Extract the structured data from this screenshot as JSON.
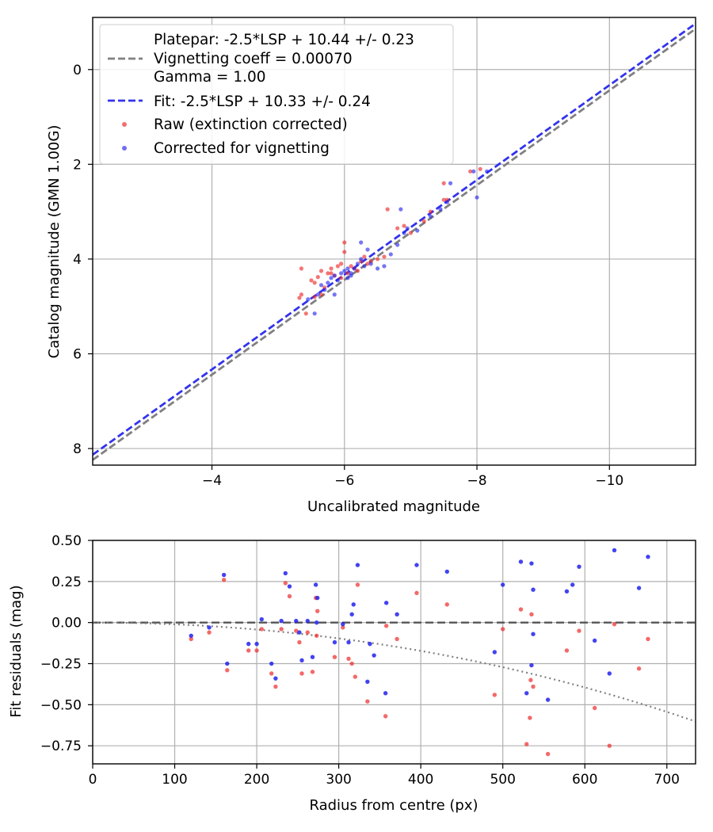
{
  "chart_data": [
    {
      "type": "scatter",
      "title": "",
      "xlabel": "Uncalibrated magnitude",
      "ylabel": "Catalog magnitude (GMN 1.00G)",
      "xlim": [
        -2.2,
        -11.3
      ],
      "ylim": [
        8.35,
        -1.1
      ],
      "xticks": [
        -4,
        -6,
        -8,
        -10
      ],
      "xtick_labels": [
        "−4",
        "−6",
        "−8",
        "−10"
      ],
      "yticks": [
        0,
        2,
        4,
        6,
        8
      ],
      "ytick_labels": [
        "0",
        "2",
        "4",
        "6",
        "8"
      ],
      "grid": true,
      "legend_position": "top-left",
      "legend": [
        {
          "label": "Platepar: -2.5*LSP + 10.44 +/- 0.23",
          "kind": "none"
        },
        {
          "label": "Vignetting coeff = 0.00070",
          "kind": "dashed-line",
          "color": "#808080"
        },
        {
          "label": "Gamma = 1.00",
          "kind": "none"
        },
        {
          "label": "Fit: -2.5*LSP + 10.33 +/- 0.24",
          "kind": "dashed-line",
          "color": "#3333ee"
        },
        {
          "label": "Raw (extinction corrected)",
          "kind": "marker",
          "color": "#ee2222"
        },
        {
          "label": "Corrected for vignetting",
          "kind": "marker",
          "color": "#2222ee"
        }
      ],
      "lines": [
        {
          "name": "Platepar",
          "offset": 10.44,
          "color": "#808080",
          "x_range": [
            -2.2,
            -11.3
          ]
        },
        {
          "name": "Fit",
          "offset": 10.33,
          "color": "#3333ee",
          "x_range": [
            -2.2,
            -11.3
          ]
        }
      ],
      "series": [
        {
          "name": "Raw (extinction corrected)",
          "color": "#ee2222",
          "points": [
            [
              -5.35,
              4.75
            ],
            [
              -5.32,
              4.82
            ],
            [
              -5.42,
              5.15
            ],
            [
              -5.5,
              4.45
            ],
            [
              -5.55,
              4.5
            ],
            [
              -5.6,
              4.38
            ],
            [
              -5.65,
              4.25
            ],
            [
              -5.7,
              4.6
            ],
            [
              -5.75,
              4.3
            ],
            [
              -5.8,
              4.2
            ],
            [
              -5.85,
              4.35
            ],
            [
              -5.9,
              4.15
            ],
            [
              -5.95,
              4.4
            ],
            [
              -6.0,
              3.85
            ],
            [
              -6.05,
              4.3
            ],
            [
              -6.1,
              4.15
            ],
            [
              -6.15,
              4.2
            ],
            [
              -6.2,
              4.25
            ],
            [
              -6.25,
              4.05
            ],
            [
              -6.3,
              3.95
            ],
            [
              -6.35,
              4.1
            ],
            [
              -6.4,
              4.05
            ],
            [
              -6.5,
              4.0
            ],
            [
              -6.6,
              3.95
            ],
            [
              -5.35,
              4.2
            ],
            [
              -5.55,
              4.8
            ],
            [
              -5.65,
              4.75
            ],
            [
              -5.8,
              4.3
            ],
            [
              -5.95,
              4.1
            ],
            [
              -6.0,
              3.65
            ],
            [
              -6.65,
              2.95
            ],
            [
              -6.8,
              3.35
            ],
            [
              -6.9,
              3.3
            ],
            [
              -7.0,
              3.45
            ],
            [
              -7.2,
              3.2
            ],
            [
              -7.3,
              3.0
            ],
            [
              -7.5,
              2.75
            ],
            [
              -7.55,
              2.75
            ],
            [
              -7.5,
              2.4
            ],
            [
              -7.9,
              2.15
            ],
            [
              -8.05,
              2.1
            ]
          ]
        },
        {
          "name": "Corrected for vignetting",
          "color": "#2222ee",
          "points": [
            [
              -5.45,
              4.85
            ],
            [
              -5.55,
              5.15
            ],
            [
              -5.6,
              4.75
            ],
            [
              -5.65,
              4.55
            ],
            [
              -5.7,
              4.65
            ],
            [
              -5.75,
              4.5
            ],
            [
              -5.8,
              4.4
            ],
            [
              -5.85,
              4.35
            ],
            [
              -5.9,
              4.45
            ],
            [
              -5.95,
              4.3
            ],
            [
              -6.0,
              4.25
            ],
            [
              -6.05,
              4.4
            ],
            [
              -6.1,
              4.3
            ],
            [
              -6.15,
              4.2
            ],
            [
              -6.2,
              4.1
            ],
            [
              -6.25,
              4.0
            ],
            [
              -6.3,
              4.15
            ],
            [
              -6.4,
              4.1
            ],
            [
              -6.5,
              4.2
            ],
            [
              -6.6,
              4.15
            ],
            [
              -6.7,
              3.9
            ],
            [
              -6.8,
              3.7
            ],
            [
              -6.9,
              3.45
            ],
            [
              -6.95,
              3.35
            ],
            [
              -7.1,
              3.4
            ],
            [
              -7.3,
              3.1
            ],
            [
              -7.45,
              2.95
            ],
            [
              -7.55,
              2.8
            ],
            [
              -7.6,
              2.4
            ],
            [
              -7.95,
              2.15
            ],
            [
              -8.0,
              2.7
            ],
            [
              -8.15,
              2.15
            ],
            [
              -6.25,
              3.65
            ],
            [
              -6.35,
              3.8
            ],
            [
              -6.85,
              2.95
            ],
            [
              -5.85,
              4.75
            ],
            [
              -6.1,
              4.35
            ],
            [
              -6.05,
              4.2
            ]
          ]
        }
      ]
    },
    {
      "type": "scatter",
      "title": "",
      "xlabel": "Radius from centre (px)",
      "ylabel": "Fit residuals (mag)",
      "xlim": [
        0,
        735
      ],
      "ylim": [
        -0.86,
        0.5
      ],
      "xticks": [
        0,
        100,
        200,
        300,
        400,
        500,
        600,
        700
      ],
      "xtick_labels": [
        "0",
        "100",
        "200",
        "300",
        "400",
        "500",
        "600",
        "700"
      ],
      "yticks": [
        0.5,
        0.25,
        0.0,
        -0.25,
        -0.5,
        -0.75
      ],
      "ytick_labels": [
        "0.50",
        "0.25",
        "0.00",
        "−0.25",
        "−0.50",
        "−0.75"
      ],
      "grid": true,
      "reference_line": {
        "y": 0.0,
        "style": "dashed",
        "color": "#555555"
      },
      "vignetting_curve": {
        "coeff": 0.0007,
        "style": "dotted",
        "color": "#808080"
      },
      "series": [
        {
          "name": "Raw (extinction corrected)",
          "color": "#ee2222",
          "points": [
            [
              120,
              -0.1
            ],
            [
              142,
              -0.06
            ],
            [
              160,
              0.26
            ],
            [
              164,
              -0.29
            ],
            [
              190,
              -0.17
            ],
            [
              200,
              -0.17
            ],
            [
              206,
              -0.04
            ],
            [
              218,
              -0.31
            ],
            [
              223,
              -0.39
            ],
            [
              230,
              -0.04
            ],
            [
              235,
              0.24
            ],
            [
              240,
              0.16
            ],
            [
              248,
              -0.05
            ],
            [
              252,
              -0.12
            ],
            [
              255,
              -0.31
            ],
            [
              262,
              -0.06
            ],
            [
              268,
              -0.3
            ],
            [
              272,
              0.15
            ],
            [
              273,
              -0.08
            ],
            [
              274,
              0.07
            ],
            [
              295,
              -0.21
            ],
            [
              305,
              -0.03
            ],
            [
              312,
              -0.22
            ],
            [
              316,
              -0.25
            ],
            [
              320,
              -0.33
            ],
            [
              323,
              0.23
            ],
            [
              335,
              -0.48
            ],
            [
              357,
              -0.57
            ],
            [
              358,
              -0.02
            ],
            [
              371,
              -0.1
            ],
            [
              395,
              0.18
            ],
            [
              432,
              0.11
            ],
            [
              490,
              -0.44
            ],
            [
              500,
              -0.04
            ],
            [
              522,
              0.08
            ],
            [
              529,
              -0.74
            ],
            [
              533,
              -0.58
            ],
            [
              534,
              -0.35
            ],
            [
              535,
              0.05
            ],
            [
              537,
              -0.39
            ],
            [
              555,
              -0.8
            ],
            [
              578,
              -0.17
            ],
            [
              593,
              -0.05
            ],
            [
              612,
              -0.52
            ],
            [
              630,
              -0.75
            ],
            [
              636,
              -0.01
            ],
            [
              666,
              -0.28
            ],
            [
              677,
              -0.1
            ]
          ]
        },
        {
          "name": "Corrected for vignetting",
          "color": "#2222ee",
          "points": [
            [
              120,
              -0.08
            ],
            [
              142,
              -0.03
            ],
            [
              160,
              0.29
            ],
            [
              164,
              -0.25
            ],
            [
              190,
              -0.13
            ],
            [
              200,
              -0.13
            ],
            [
              206,
              0.02
            ],
            [
              218,
              -0.25
            ],
            [
              223,
              -0.34
            ],
            [
              230,
              0.01
            ],
            [
              235,
              0.3
            ],
            [
              240,
              0.22
            ],
            [
              248,
              0.01
            ],
            [
              252,
              -0.06
            ],
            [
              255,
              -0.23
            ],
            [
              262,
              0.01
            ],
            [
              268,
              -0.21
            ],
            [
              272,
              0.23
            ],
            [
              273,
              0.0
            ],
            [
              274,
              0.15
            ],
            [
              295,
              -0.12
            ],
            [
              305,
              -0.01
            ],
            [
              312,
              -0.12
            ],
            [
              316,
              0.05
            ],
            [
              318,
              0.11
            ],
            [
              323,
              0.35
            ],
            [
              335,
              -0.36
            ],
            [
              338,
              -0.13
            ],
            [
              343,
              -0.2
            ],
            [
              357,
              -0.43
            ],
            [
              358,
              0.12
            ],
            [
              371,
              0.05
            ],
            [
              395,
              0.35
            ],
            [
              432,
              0.31
            ],
            [
              490,
              -0.18
            ],
            [
              500,
              0.23
            ],
            [
              522,
              0.37
            ],
            [
              529,
              -0.43
            ],
            [
              535,
              0.36
            ],
            [
              535,
              -0.26
            ],
            [
              537,
              0.2
            ],
            [
              537,
              -0.07
            ],
            [
              555,
              -0.47
            ],
            [
              578,
              0.19
            ],
            [
              585,
              0.23
            ],
            [
              593,
              0.34
            ],
            [
              612,
              -0.11
            ],
            [
              630,
              -0.31
            ],
            [
              636,
              0.44
            ],
            [
              666,
              0.21
            ],
            [
              677,
              0.4
            ]
          ]
        }
      ]
    }
  ]
}
